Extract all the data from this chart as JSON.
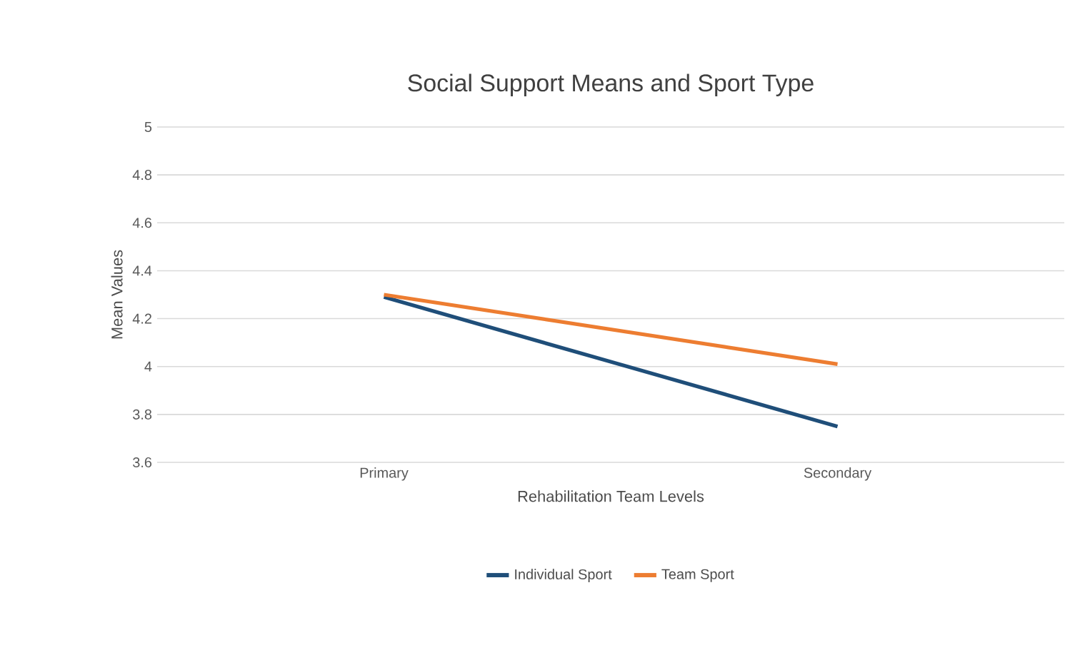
{
  "chart_data": {
    "type": "line",
    "title": "Social Support Means and Sport Type",
    "xlabel": "Rehabilitation Team Levels",
    "ylabel": "Mean Values",
    "categories": [
      "Primary",
      "Secondary"
    ],
    "series": [
      {
        "name": "Individual Sport",
        "color": "#1f4e79",
        "values": [
          4.29,
          3.75
        ]
      },
      {
        "name": "Team Sport",
        "color": "#ed7d31",
        "values": [
          4.3,
          4.01
        ]
      }
    ],
    "ylim": [
      3.6,
      5
    ],
    "yticks": [
      3.6,
      3.8,
      4,
      4.2,
      4.4,
      4.6,
      4.8,
      5
    ],
    "grid": "y",
    "legend": "bottom",
    "marker": "none",
    "line_style": "solid"
  }
}
